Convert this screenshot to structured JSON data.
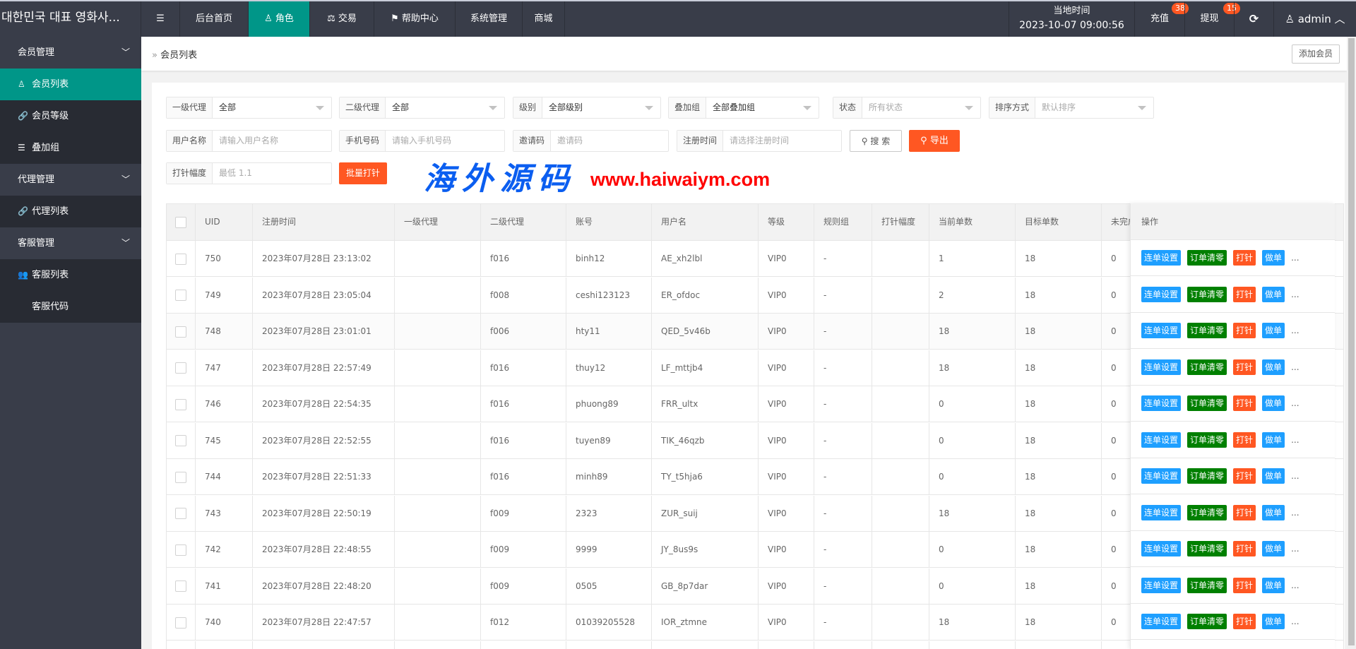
{
  "header": {
    "title": "대한민국 대표 영화사...",
    "nav": [
      {
        "label": "后台首页",
        "icon": ""
      },
      {
        "label": "角色",
        "icon": "user-icon",
        "active": true
      },
      {
        "label": "交易",
        "icon": "scale-icon"
      },
      {
        "label": "帮助中心",
        "icon": "flag-icon"
      },
      {
        "label": "系统管理",
        "icon": ""
      },
      {
        "label": "商城",
        "icon": ""
      }
    ],
    "time_label": "当地时间",
    "time_value": "2023-10-07 09:00:56",
    "recharge": "充值",
    "recharge_count": "38",
    "withdraw": "提现",
    "withdraw_count": "15",
    "user": "admin"
  },
  "sidebar": [
    {
      "label": "会员管理",
      "type": "group"
    },
    {
      "label": "会员列表",
      "icon": "user-icon",
      "active": true
    },
    {
      "label": "会员等级",
      "icon": "link-icon"
    },
    {
      "label": "叠加组",
      "icon": "list-icon"
    },
    {
      "label": "代理管理",
      "type": "group"
    },
    {
      "label": "代理列表",
      "icon": "link-icon"
    },
    {
      "label": "客服管理",
      "type": "group"
    },
    {
      "label": "客服列表",
      "icon": "users-icon"
    },
    {
      "label": "客服代码",
      "icon": "code-icon"
    }
  ],
  "breadcrumb": "会员列表",
  "add_member": "添加会员",
  "filters": {
    "agent1": {
      "label": "一级代理",
      "value": "全部"
    },
    "agent2": {
      "label": "二级代理",
      "value": "全部"
    },
    "level": {
      "label": "级别",
      "value": "全部级别"
    },
    "group": {
      "label": "叠加组",
      "value": "全部叠加组"
    },
    "status": {
      "label": "状态",
      "placeholder": "所有状态"
    },
    "sort": {
      "label": "排序方式",
      "placeholder": "默认排序"
    },
    "username": {
      "label": "用户名称",
      "placeholder": "请输入用户名称"
    },
    "phone": {
      "label": "手机号码",
      "placeholder": "请输入手机号码"
    },
    "invite": {
      "label": "邀请码",
      "placeholder": "邀请码"
    },
    "regtime": {
      "label": "注册时间",
      "placeholder": "请选择注册时间"
    },
    "search": "搜 索",
    "export": "导出",
    "amp": {
      "label": "打针幅度",
      "placeholder": "最低 1.1"
    },
    "batch": "批量打针"
  },
  "table": {
    "columns": [
      "UID",
      "注册时间",
      "一级代理",
      "二级代理",
      "账号",
      "用户名",
      "等级",
      "规则组",
      "打针幅度",
      "当前单数",
      "目标单数",
      "未完成",
      "操作"
    ],
    "actions": [
      {
        "label": "连单设置",
        "color": "#1e9fff"
      },
      {
        "label": "订单清零",
        "color": "#008000"
      },
      {
        "label": "打针",
        "color": "#ff5722"
      },
      {
        "label": "做单",
        "color": "#1e9fff"
      }
    ],
    "more": "...",
    "rows": [
      [
        "750",
        "2023年07月28日 23:13:02",
        "",
        "f016",
        "binh12",
        "AE_xh2lbl",
        "VIP0",
        "-",
        "",
        "1",
        "18",
        "0"
      ],
      [
        "749",
        "2023年07月28日 23:05:04",
        "",
        "f008",
        "ceshi123123",
        "ER_ofdoc",
        "VIP0",
        "-",
        "",
        "2",
        "18",
        "0"
      ],
      [
        "748",
        "2023年07月28日 23:01:01",
        "",
        "f006",
        "hty11",
        "QED_5v46b",
        "VIP0",
        "-",
        "",
        "18",
        "18",
        "0"
      ],
      [
        "747",
        "2023年07月28日 22:57:49",
        "",
        "f016",
        "thuy12",
        "LF_mttjb4",
        "VIP0",
        "-",
        "",
        "18",
        "18",
        "0"
      ],
      [
        "746",
        "2023年07月28日 22:54:35",
        "",
        "f016",
        "phuong89",
        "FRR_ultx",
        "VIP0",
        "-",
        "",
        "0",
        "18",
        "0"
      ],
      [
        "745",
        "2023年07月28日 22:52:55",
        "",
        "f016",
        "tuyen89",
        "TIK_46qzb",
        "VIP0",
        "-",
        "",
        "0",
        "18",
        "0"
      ],
      [
        "744",
        "2023年07月28日 22:51:33",
        "",
        "f016",
        "minh89",
        "TY_t5hja6",
        "VIP0",
        "-",
        "",
        "0",
        "18",
        "0"
      ],
      [
        "743",
        "2023年07月28日 22:50:19",
        "",
        "f009",
        "2323",
        "ZUR_suij",
        "VIP0",
        "-",
        "",
        "18",
        "18",
        "0"
      ],
      [
        "742",
        "2023年07月28日 22:48:55",
        "",
        "f009",
        "9999",
        "JY_8us9s",
        "VIP0",
        "-",
        "",
        "0",
        "18",
        "0"
      ],
      [
        "741",
        "2023年07月28日 22:48:20",
        "",
        "f009",
        "0505",
        "GB_8p7dar",
        "VIP0",
        "-",
        "",
        "0",
        "18",
        "0"
      ],
      [
        "740",
        "2023年07月28日 22:47:57",
        "",
        "f012",
        "01039205528",
        "IOR_ztmne",
        "VIP0",
        "-",
        "",
        "18",
        "18",
        "0"
      ],
      [
        "",
        "",
        "",
        "",
        "",
        "",
        "",
        "",
        "",
        "",
        "",
        ""
      ]
    ]
  },
  "watermark": {
    "cn": "海外源码",
    "url": "www.haiwaiym.com"
  }
}
